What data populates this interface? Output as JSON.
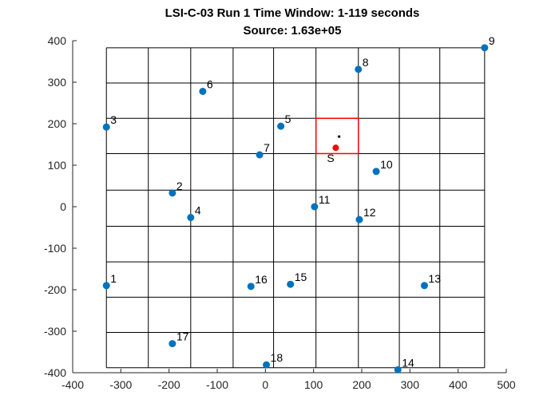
{
  "chart_data": {
    "type": "scatter",
    "title": "LSI-C-03 Run 1     Time Window: 1-119 seconds",
    "subtitle": "Source: 1.63e+05",
    "xlabel": "",
    "ylabel": "",
    "xlim": [
      -400,
      500
    ],
    "ylim": [
      -400,
      400
    ],
    "xticks": [
      -400,
      -300,
      -200,
      -100,
      0,
      100,
      200,
      300,
      400,
      500
    ],
    "yticks": [
      -400,
      -300,
      -200,
      -100,
      0,
      100,
      200,
      300,
      400
    ],
    "xtick_labels": [
      "-400",
      "-300",
      "-200",
      "-100",
      "0",
      "100",
      "200",
      "300",
      "400",
      "500"
    ],
    "ytick_labels": [
      "-400",
      "-300",
      "-200",
      "-100",
      "0",
      "100",
      "200",
      "300",
      "400"
    ],
    "grid": {
      "x_lines": [
        -330,
        -243,
        -155,
        -67,
        17,
        105,
        193,
        278,
        362,
        455
      ],
      "y_lines": [
        383,
        298,
        213,
        128,
        40,
        -47,
        -133,
        -218,
        -303,
        -388
      ],
      "color": "#000000"
    },
    "series": [
      {
        "color": "#0072BD",
        "points": [
          {
            "label": "1",
            "x": -330,
            "y": -190
          },
          {
            "label": "2",
            "x": -193,
            "y": 33
          },
          {
            "label": "3",
            "x": -330,
            "y": 192
          },
          {
            "label": "4",
            "x": -155,
            "y": -26
          },
          {
            "label": "5",
            "x": 32,
            "y": 194
          },
          {
            "label": "6",
            "x": -130,
            "y": 278
          },
          {
            "label": "7",
            "x": -12,
            "y": 125
          },
          {
            "label": "8",
            "x": 193,
            "y": 331
          },
          {
            "label": "9",
            "x": 455,
            "y": 383
          },
          {
            "label": "10",
            "x": 230,
            "y": 85
          },
          {
            "label": "11",
            "x": 102,
            "y": 0
          },
          {
            "label": "12",
            "x": 195,
            "y": -31
          },
          {
            "label": "13",
            "x": 330,
            "y": -190
          },
          {
            "label": "14",
            "x": 275,
            "y": -393
          },
          {
            "label": "15",
            "x": 52,
            "y": -187
          },
          {
            "label": "16",
            "x": -30,
            "y": -192
          },
          {
            "label": "17",
            "x": -193,
            "y": -330
          },
          {
            "label": "18",
            "x": 2,
            "y": -381
          }
        ]
      }
    ],
    "source": {
      "label": "S",
      "x": 146,
      "y": 142,
      "color": "#FF0000"
    },
    "estimate_dot": {
      "x": 153,
      "y": 169,
      "color": "#000000"
    },
    "source_box": {
      "x0": 105,
      "x1": 193,
      "y0": 128,
      "y1": 213,
      "color": "#FF0000"
    }
  }
}
